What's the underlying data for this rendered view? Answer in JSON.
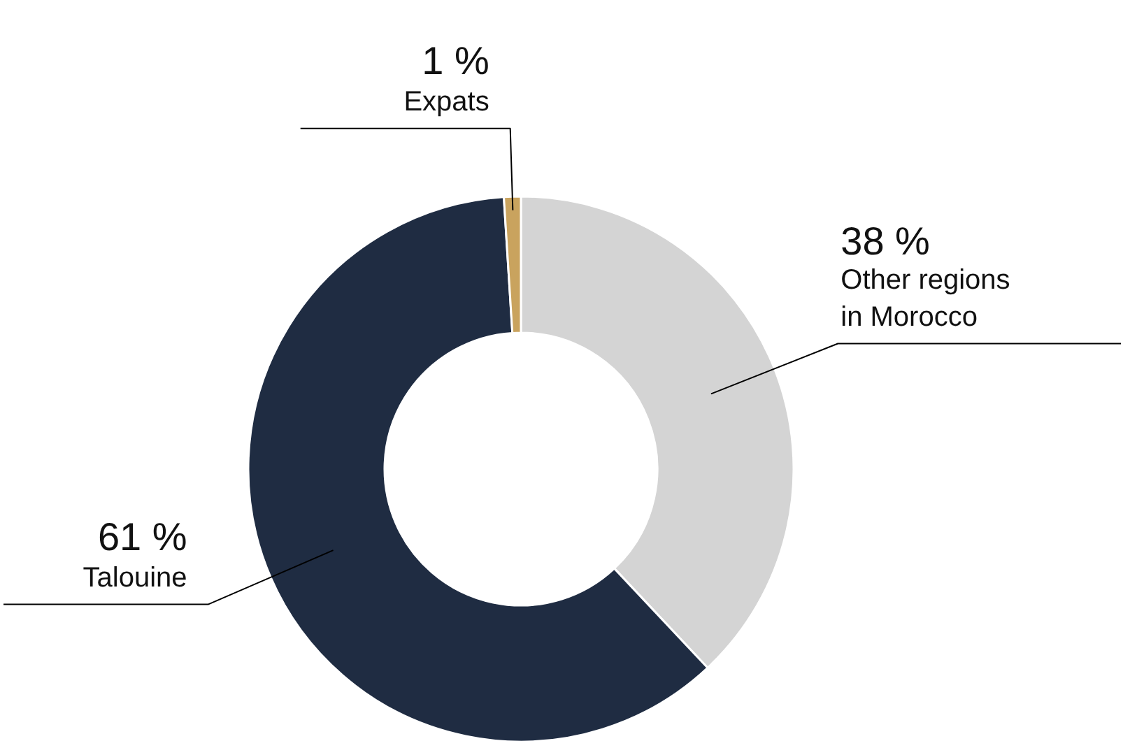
{
  "chart_data": {
    "type": "donut",
    "categories": [
      "Other regions in Morocco",
      "Talouine",
      "Expats"
    ],
    "values": [
      38,
      61,
      1
    ],
    "colors": [
      "#d4d4d4",
      "#1f2c42",
      "#c9a35e"
    ],
    "value_labels": [
      "38 %",
      "61 %",
      "1 %"
    ]
  }
}
